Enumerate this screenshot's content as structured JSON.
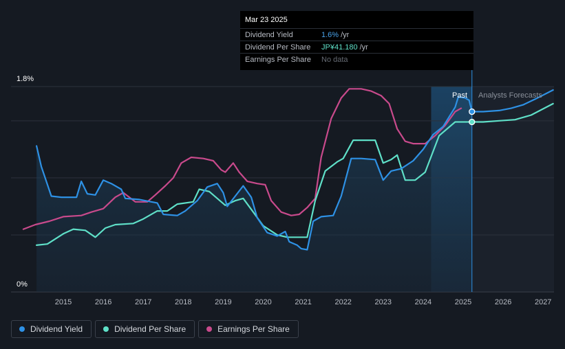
{
  "tooltip": {
    "date": "Mar 23 2025",
    "rows": [
      {
        "label": "Dividend Yield",
        "value": "1.6%",
        "unit": "/yr"
      },
      {
        "label": "Dividend Per Share",
        "value": "JP¥41.180",
        "unit": "/yr"
      },
      {
        "label": "Earnings Per Share",
        "value": "No data"
      }
    ]
  },
  "labels": {
    "past": "Past",
    "forecast": "Analysts Forecasts"
  },
  "legend": [
    {
      "label": "Dividend Yield",
      "color": "#2e91e5"
    },
    {
      "label": "Dividend Per Share",
      "color": "#5fe0c8"
    },
    {
      "label": "Earnings Per Share",
      "color": "#c94a8c"
    }
  ],
  "chart_data": {
    "type": "line",
    "y_ticks": [
      "1.8%",
      "0%"
    ],
    "ylim": [
      0,
      1.8
    ],
    "xlim": [
      2014.0,
      2027.25
    ],
    "x_ticks": [
      "2015",
      "2016",
      "2017",
      "2018",
      "2019",
      "2020",
      "2021",
      "2022",
      "2023",
      "2024",
      "2025",
      "2026",
      "2027"
    ],
    "past_region": [
      2024.2,
      2025.22
    ],
    "marker_x": 2025.22,
    "grid": true,
    "series": [
      {
        "name": "Dividend Yield",
        "color": "#2e91e5",
        "points": [
          [
            2014.33,
            1.28
          ],
          [
            2014.45,
            1.1
          ],
          [
            2014.7,
            0.84
          ],
          [
            2014.95,
            0.83
          ],
          [
            2015.33,
            0.83
          ],
          [
            2015.45,
            0.97
          ],
          [
            2015.6,
            0.86
          ],
          [
            2015.8,
            0.85
          ],
          [
            2016.0,
            0.98
          ],
          [
            2016.2,
            0.95
          ],
          [
            2016.45,
            0.9
          ],
          [
            2016.55,
            0.82
          ],
          [
            2016.9,
            0.81
          ],
          [
            2017.35,
            0.78
          ],
          [
            2017.5,
            0.68
          ],
          [
            2017.85,
            0.67
          ],
          [
            2018.05,
            0.71
          ],
          [
            2018.35,
            0.8
          ],
          [
            2018.6,
            0.92
          ],
          [
            2018.85,
            0.95
          ],
          [
            2019.0,
            0.87
          ],
          [
            2019.1,
            0.75
          ],
          [
            2019.3,
            0.84
          ],
          [
            2019.5,
            0.93
          ],
          [
            2019.7,
            0.83
          ],
          [
            2019.85,
            0.65
          ],
          [
            2020.1,
            0.52
          ],
          [
            2020.35,
            0.49
          ],
          [
            2020.55,
            0.53
          ],
          [
            2020.65,
            0.44
          ],
          [
            2020.85,
            0.41
          ],
          [
            2020.95,
            0.38
          ],
          [
            2021.1,
            0.37
          ],
          [
            2021.25,
            0.62
          ],
          [
            2021.45,
            0.66
          ],
          [
            2021.75,
            0.67
          ],
          [
            2021.95,
            0.84
          ],
          [
            2022.2,
            1.17
          ],
          [
            2022.45,
            1.17
          ],
          [
            2022.8,
            1.16
          ],
          [
            2023.0,
            0.98
          ],
          [
            2023.2,
            1.06
          ],
          [
            2023.45,
            1.08
          ],
          [
            2023.75,
            1.15
          ],
          [
            2024.0,
            1.25
          ],
          [
            2024.25,
            1.38
          ],
          [
            2024.5,
            1.45
          ],
          [
            2024.8,
            1.62
          ],
          [
            2024.88,
            1.71
          ],
          [
            2025.05,
            1.7
          ],
          [
            2025.15,
            1.68
          ],
          [
            2025.22,
            1.58
          ],
          [
            2025.5,
            1.58
          ],
          [
            2025.9,
            1.59
          ],
          [
            2026.2,
            1.61
          ],
          [
            2026.5,
            1.64
          ],
          [
            2026.8,
            1.69
          ],
          [
            2027.25,
            1.77
          ]
        ]
      },
      {
        "name": "Dividend Per Share",
        "color": "#5fe0c8",
        "points": [
          [
            2014.33,
            0.41
          ],
          [
            2014.6,
            0.42
          ],
          [
            2015.0,
            0.51
          ],
          [
            2015.25,
            0.55
          ],
          [
            2015.55,
            0.54
          ],
          [
            2015.8,
            0.48
          ],
          [
            2016.05,
            0.56
          ],
          [
            2016.3,
            0.59
          ],
          [
            2016.75,
            0.6
          ],
          [
            2017.0,
            0.64
          ],
          [
            2017.35,
            0.71
          ],
          [
            2017.6,
            0.71
          ],
          [
            2017.85,
            0.77
          ],
          [
            2018.25,
            0.79
          ],
          [
            2018.4,
            0.9
          ],
          [
            2018.65,
            0.88
          ],
          [
            2019.05,
            0.76
          ],
          [
            2019.3,
            0.8
          ],
          [
            2019.5,
            0.82
          ],
          [
            2019.75,
            0.7
          ],
          [
            2020.0,
            0.58
          ],
          [
            2020.35,
            0.5
          ],
          [
            2020.6,
            0.48
          ],
          [
            2020.85,
            0.48
          ],
          [
            2021.1,
            0.48
          ],
          [
            2021.3,
            0.8
          ],
          [
            2021.55,
            1.06
          ],
          [
            2021.85,
            1.14
          ],
          [
            2022.0,
            1.17
          ],
          [
            2022.25,
            1.33
          ],
          [
            2022.5,
            1.33
          ],
          [
            2022.8,
            1.33
          ],
          [
            2023.0,
            1.13
          ],
          [
            2023.2,
            1.16
          ],
          [
            2023.35,
            1.2
          ],
          [
            2023.55,
            0.98
          ],
          [
            2023.8,
            0.98
          ],
          [
            2024.05,
            1.05
          ],
          [
            2024.4,
            1.37
          ],
          [
            2024.8,
            1.49
          ],
          [
            2025.0,
            1.49
          ],
          [
            2025.22,
            1.49
          ],
          [
            2025.5,
            1.49
          ],
          [
            2025.9,
            1.5
          ],
          [
            2026.3,
            1.51
          ],
          [
            2026.7,
            1.55
          ],
          [
            2027.25,
            1.65
          ]
        ]
      },
      {
        "name": "Earnings Per Share",
        "color": "#c94a8c",
        "points": [
          [
            2014.0,
            0.55
          ],
          [
            2014.3,
            0.59
          ],
          [
            2014.65,
            0.62
          ],
          [
            2015.0,
            0.66
          ],
          [
            2015.45,
            0.67
          ],
          [
            2015.7,
            0.7
          ],
          [
            2016.0,
            0.73
          ],
          [
            2016.3,
            0.83
          ],
          [
            2016.5,
            0.87
          ],
          [
            2016.8,
            0.79
          ],
          [
            2017.1,
            0.79
          ],
          [
            2017.3,
            0.85
          ],
          [
            2017.55,
            0.93
          ],
          [
            2017.75,
            1.0
          ],
          [
            2017.95,
            1.13
          ],
          [
            2018.2,
            1.18
          ],
          [
            2018.5,
            1.17
          ],
          [
            2018.75,
            1.15
          ],
          [
            2018.95,
            1.07
          ],
          [
            2019.05,
            1.05
          ],
          [
            2019.25,
            1.13
          ],
          [
            2019.4,
            1.05
          ],
          [
            2019.6,
            0.97
          ],
          [
            2019.85,
            0.95
          ],
          [
            2020.05,
            0.94
          ],
          [
            2020.2,
            0.8
          ],
          [
            2020.45,
            0.7
          ],
          [
            2020.7,
            0.67
          ],
          [
            2020.9,
            0.68
          ],
          [
            2021.1,
            0.74
          ],
          [
            2021.3,
            0.82
          ],
          [
            2021.45,
            1.18
          ],
          [
            2021.7,
            1.52
          ],
          [
            2021.95,
            1.7
          ],
          [
            2022.15,
            1.78
          ],
          [
            2022.45,
            1.78
          ],
          [
            2022.7,
            1.76
          ],
          [
            2022.95,
            1.72
          ],
          [
            2023.15,
            1.65
          ],
          [
            2023.35,
            1.43
          ],
          [
            2023.55,
            1.32
          ],
          [
            2023.75,
            1.3
          ],
          [
            2024.05,
            1.3
          ],
          [
            2024.3,
            1.37
          ],
          [
            2024.55,
            1.46
          ],
          [
            2024.8,
            1.58
          ],
          [
            2024.95,
            1.61
          ]
        ]
      }
    ],
    "markers": [
      {
        "series": "Dividend Yield",
        "x": 2025.22,
        "y": 1.58
      },
      {
        "series": "Dividend Per Share",
        "x": 2025.22,
        "y": 1.49
      }
    ]
  }
}
